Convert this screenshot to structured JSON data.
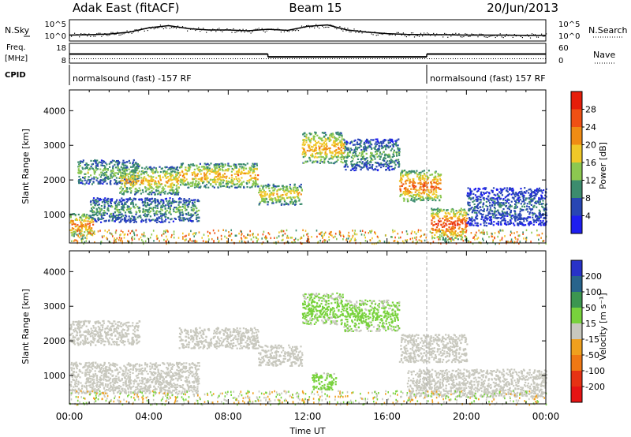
{
  "header": {
    "station": "Adak East (fitACF)",
    "beam": "Beam 15",
    "date": "20/Jun/2013"
  },
  "chart_data": [
    {
      "type": "line",
      "panel": "noise",
      "left_label": "N.Sky",
      "right_label": "N.Search",
      "ticks_left": [
        "10^5",
        "10^0"
      ],
      "ticks_right": [
        "10^5",
        "10^0"
      ],
      "x": [
        0,
        1,
        2,
        3,
        4,
        5,
        6,
        7,
        8,
        9,
        10,
        11,
        12,
        13,
        14,
        15,
        16,
        17,
        18,
        19,
        20,
        21,
        22,
        23,
        24
      ],
      "y": [
        1.2,
        1.3,
        1.5,
        2.0,
        3.2,
        3.8,
        3.0,
        2.6,
        2.6,
        2.4,
        2.8,
        2.5,
        3.6,
        4.0,
        2.6,
        2.0,
        1.6,
        1.4,
        1.3,
        1.3,
        1.2,
        1.2,
        1.2,
        1.1,
        1.1
      ]
    },
    {
      "type": "line",
      "panel": "frequency",
      "left_label": "Freq.",
      "left_unit": "[MHz]",
      "right_label": "Nave",
      "ticks_left": [
        "18",
        "8"
      ],
      "ticks_right": [
        "60",
        "0"
      ],
      "freq_segments": [
        {
          "x": [
            0,
            10
          ],
          "y": 12.5
        },
        {
          "x": [
            10,
            18
          ],
          "y": 10.8
        },
        {
          "x": [
            18,
            24
          ],
          "y": 12.5
        }
      ],
      "nave_level": 10
    },
    {
      "type": "table",
      "panel": "cpid",
      "label": "CPID",
      "segments": [
        {
          "start": 0,
          "end": 18,
          "text": "normalsound (fast) -157 RF"
        },
        {
          "start": 18,
          "end": 24,
          "text": "normalsound (fast) 157 RF"
        }
      ]
    },
    {
      "type": "heatmap",
      "panel": "power",
      "ylabel": "Slant Range [km]",
      "ylim": [
        180,
        4600
      ],
      "yticks": [
        "1000",
        "2000",
        "3000",
        "4000"
      ],
      "colorbar_label": "Power [dB]",
      "colorbar_ticks": [
        "4",
        "8",
        "12",
        "16",
        "20",
        "24",
        "28"
      ],
      "colorbar_colors": [
        "#1e1ef0",
        "#2846b4",
        "#3c8c6e",
        "#8cc850",
        "#f0c828",
        "#f08c14",
        "#f05014",
        "#e61e0a"
      ],
      "bands": [
        {
          "t0": 0.0,
          "t1": 1.2,
          "r0": 400,
          "r1": 1050,
          "value": 24
        },
        {
          "t0": 0.4,
          "t1": 3.5,
          "r0": 1900,
          "r1": 2600,
          "value": 14
        },
        {
          "t0": 2.5,
          "t1": 5.5,
          "r0": 1600,
          "r1": 2400,
          "value": 20
        },
        {
          "t0": 1.0,
          "t1": 6.5,
          "r0": 800,
          "r1": 1500,
          "value": 12
        },
        {
          "t0": 5.5,
          "t1": 9.5,
          "r0": 1800,
          "r1": 2500,
          "value": 22
        },
        {
          "t0": 9.5,
          "t1": 11.7,
          "r0": 1300,
          "r1": 1900,
          "value": 20
        },
        {
          "t0": 11.7,
          "t1": 13.8,
          "r0": 2500,
          "r1": 3400,
          "value": 22
        },
        {
          "t0": 13.8,
          "t1": 16.6,
          "r0": 2300,
          "r1": 3200,
          "value": 12
        },
        {
          "t0": 16.6,
          "t1": 18.7,
          "r0": 1400,
          "r1": 2300,
          "value": 26
        },
        {
          "t0": 18.2,
          "t1": 20.0,
          "r0": 300,
          "r1": 1200,
          "value": 28
        },
        {
          "t0": 20.0,
          "t1": 24.0,
          "r0": 700,
          "r1": 1800,
          "value": 8
        }
      ]
    },
    {
      "type": "heatmap",
      "panel": "velocity",
      "ylabel": "Slant Range [km]",
      "ylim": [
        180,
        4600
      ],
      "yticks": [
        "1000",
        "2000",
        "3000",
        "4000"
      ],
      "colorbar_label": "Velocity [m s⁻¹]",
      "colorbar_ticks": [
        "200",
        "100",
        "50",
        "15",
        "-15",
        "-50",
        "-100",
        "-200"
      ],
      "colorbar_colors": [
        "#2832c8",
        "#28648c",
        "#3c9650",
        "#78d23c",
        "#c8c8be",
        "#f0a01e",
        "#f07814",
        "#e63214",
        "#e61414"
      ],
      "bands": [
        {
          "t0": 0.0,
          "t1": 3.5,
          "r0": 1900,
          "r1": 2600,
          "value": 0
        },
        {
          "t0": 0.0,
          "t1": 6.5,
          "r0": 500,
          "r1": 1400,
          "value": 0
        },
        {
          "t0": 5.5,
          "t1": 9.5,
          "r0": 1800,
          "r1": 2400,
          "value": 0
        },
        {
          "t0": 9.5,
          "t1": 11.7,
          "r0": 1300,
          "r1": 1900,
          "value": 0
        },
        {
          "t0": 11.7,
          "t1": 13.8,
          "r0": 2500,
          "r1": 3400,
          "value": 30
        },
        {
          "t0": 12.2,
          "t1": 13.4,
          "r0": 600,
          "r1": 1100,
          "value": 40
        },
        {
          "t0": 13.8,
          "t1": 16.6,
          "r0": 2300,
          "r1": 3200,
          "value": 30
        },
        {
          "t0": 16.6,
          "t1": 20.0,
          "r0": 1400,
          "r1": 2200,
          "value": 0
        },
        {
          "t0": 17.0,
          "t1": 24.0,
          "r0": 400,
          "r1": 1200,
          "value": 0
        }
      ]
    }
  ],
  "x_axis": {
    "label": "Time UT",
    "ticks": [
      "00:00",
      "04:00",
      "08:00",
      "12:00",
      "16:00",
      "20:00",
      "00:00"
    ]
  }
}
